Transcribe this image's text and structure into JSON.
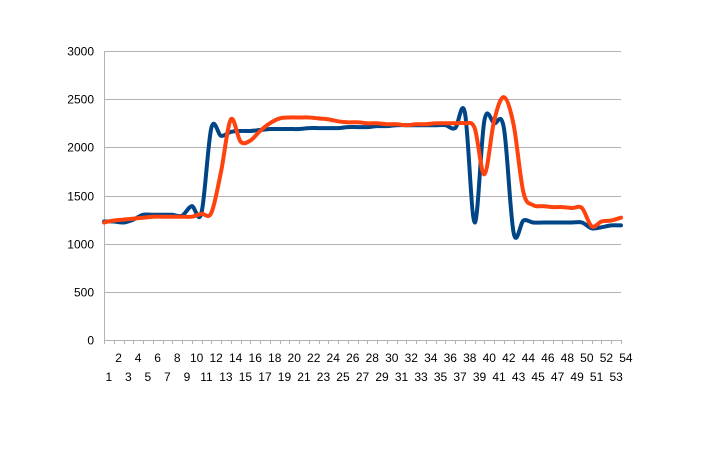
{
  "chart_data": {
    "type": "line",
    "title": "",
    "xlabel": "",
    "ylabel": "",
    "ylim": [
      0,
      3000
    ],
    "yticks": [
      0,
      500,
      1000,
      1500,
      2000,
      2500,
      3000
    ],
    "grid": true,
    "legend": "none",
    "x": [
      1,
      2,
      3,
      4,
      5,
      6,
      7,
      8,
      9,
      10,
      11,
      12,
      13,
      14,
      15,
      16,
      17,
      18,
      19,
      20,
      21,
      22,
      23,
      24,
      25,
      26,
      27,
      28,
      29,
      30,
      31,
      32,
      33,
      34,
      35,
      36,
      37,
      38,
      39,
      40,
      41,
      42,
      43,
      44,
      45,
      46,
      47,
      48,
      49,
      50,
      51,
      52,
      53,
      54
    ],
    "series": [
      {
        "color": "#004586",
        "values": [
          1230,
          1230,
          1220,
          1250,
          1300,
          1300,
          1300,
          1300,
          1290,
          1390,
          1320,
          2200,
          2120,
          2160,
          2170,
          2170,
          2180,
          2190,
          2190,
          2190,
          2190,
          2200,
          2200,
          2200,
          2200,
          2210,
          2210,
          2210,
          2220,
          2220,
          2230,
          2230,
          2230,
          2230,
          2230,
          2230,
          2200,
          2360,
          1220,
          2280,
          2250,
          2200,
          1110,
          1240,
          1220,
          1220,
          1220,
          1220,
          1220,
          1220,
          1160,
          1170,
          1190,
          1190
        ]
      },
      {
        "color": "#ff420e",
        "values": [
          1220,
          1240,
          1250,
          1260,
          1270,
          1280,
          1280,
          1280,
          1280,
          1280,
          1310,
          1320,
          1750,
          2290,
          2060,
          2070,
          2170,
          2250,
          2300,
          2310,
          2310,
          2310,
          2300,
          2290,
          2270,
          2260,
          2260,
          2250,
          2250,
          2240,
          2240,
          2230,
          2240,
          2240,
          2250,
          2250,
          2250,
          2250,
          2200,
          1720,
          2280,
          2520,
          2230,
          1530,
          1400,
          1390,
          1380,
          1380,
          1370,
          1370,
          1180,
          1230,
          1240,
          1270
        ]
      }
    ]
  }
}
